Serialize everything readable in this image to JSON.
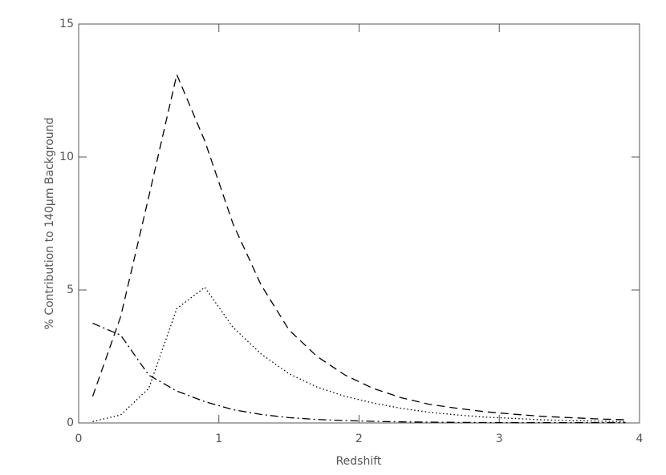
{
  "chart_data": {
    "type": "line",
    "x_label": "Redshift",
    "y_label": "% Contribution to 140μm Background",
    "x": [
      0.1,
      0.3,
      0.5,
      0.7,
      0.9,
      1.1,
      1.3,
      1.5,
      1.7,
      1.9,
      2.1,
      2.3,
      2.5,
      2.7,
      2.9,
      3.1,
      3.3,
      3.5,
      3.7,
      3.9
    ],
    "series": [
      {
        "color": "#000000",
        "dash": "dashed",
        "values": [
          1.0,
          4.0,
          8.5,
          13.1,
          10.6,
          7.5,
          5.2,
          3.5,
          2.5,
          1.8,
          1.3,
          0.95,
          0.7,
          0.55,
          0.42,
          0.33,
          0.25,
          0.2,
          0.15,
          0.12
        ]
      },
      {
        "color": "#000000",
        "dash": "dotted",
        "values": [
          0.05,
          0.3,
          1.3,
          4.3,
          5.1,
          3.6,
          2.6,
          1.85,
          1.35,
          1.0,
          0.75,
          0.55,
          0.4,
          0.3,
          0.22,
          0.17,
          0.12,
          0.09,
          0.07,
          0.05
        ]
      },
      {
        "color": "#000000",
        "dash": "dashdot",
        "values": [
          3.75,
          3.3,
          1.8,
          1.2,
          0.8,
          0.5,
          0.32,
          0.2,
          0.13,
          0.09,
          0.06,
          0.04,
          0.03,
          0.02,
          0.015,
          0.01,
          0.01,
          0.01,
          0.01,
          0.01
        ]
      }
    ],
    "xlim": [
      0,
      4
    ],
    "xticks": [
      0,
      1,
      2,
      3,
      4
    ],
    "ylim": [
      0,
      15
    ],
    "yticks": [
      0,
      5,
      10,
      15
    ],
    "grid": false
  }
}
